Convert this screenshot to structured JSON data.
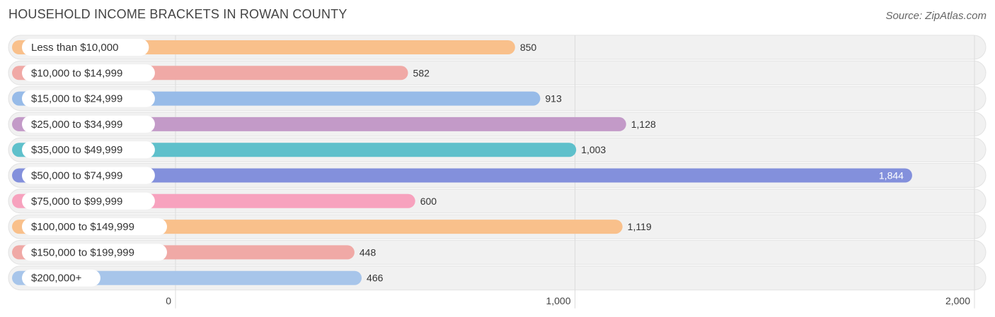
{
  "header": {
    "title": "HOUSEHOLD INCOME BRACKETS IN ROWAN COUNTY",
    "source": "Source: ZipAtlas.com"
  },
  "chart_data": {
    "type": "bar",
    "orientation": "horizontal",
    "title": "HOUSEHOLD INCOME BRACKETS IN ROWAN COUNTY",
    "categories": [
      "Less than $10,000",
      "$10,000 to $14,999",
      "$15,000 to $24,999",
      "$25,000 to $34,999",
      "$35,000 to $49,999",
      "$50,000 to $74,999",
      "$75,000 to $99,999",
      "$100,000 to $149,999",
      "$150,000 to $199,999",
      "$200,000+"
    ],
    "values": [
      850,
      582,
      913,
      1128,
      1003,
      1844,
      600,
      1119,
      448,
      466
    ],
    "value_labels": [
      "850",
      "582",
      "913",
      "1,128",
      "1,003",
      "1,844",
      "600",
      "1,119",
      "448",
      "466"
    ],
    "colors": [
      "#f9c08b",
      "#f0a9a6",
      "#97bbe8",
      "#c39ac8",
      "#5ec0cb",
      "#8390dc",
      "#f7a2be",
      "#f9c08b",
      "#f0a9a6",
      "#a7c5ea"
    ],
    "xlim": [
      0,
      2000
    ],
    "xticks": [
      0,
      1000,
      2000
    ],
    "xtick_labels": [
      "0",
      "1,000",
      "2,000"
    ],
    "grid": true,
    "xlabel": "",
    "ylabel": ""
  }
}
